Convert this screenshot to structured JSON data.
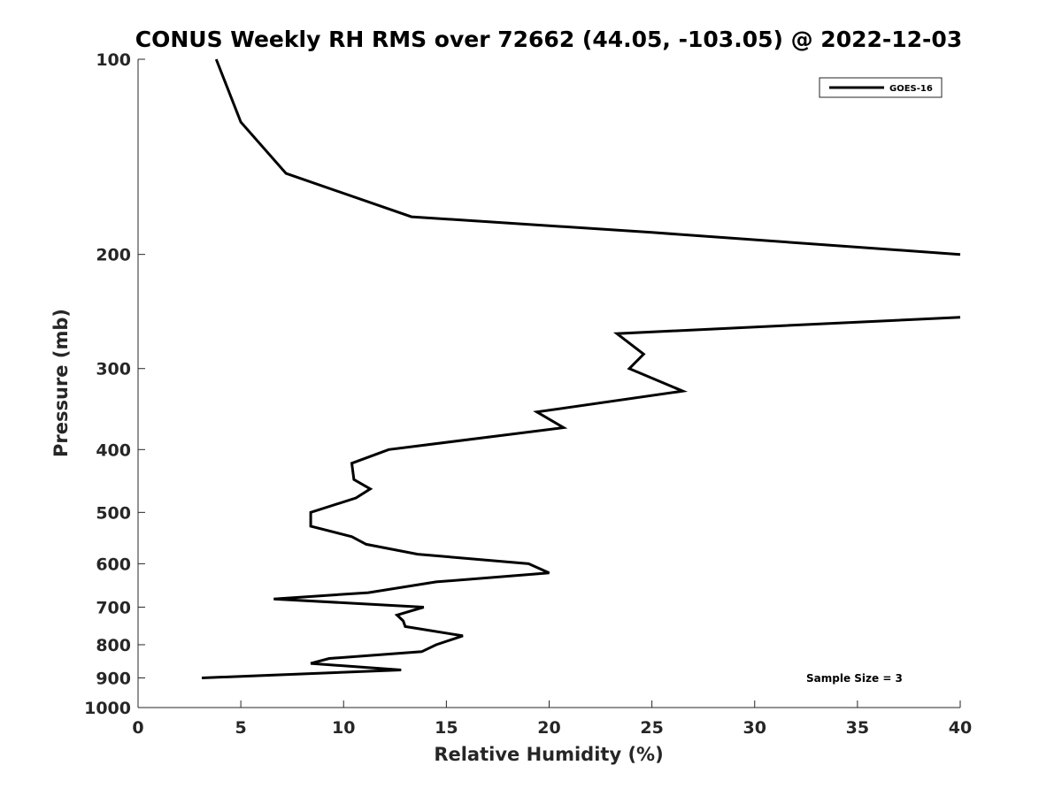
{
  "chart_data": {
    "type": "line",
    "title": "CONUS Weekly RH RMS over 72662 (44.05, -103.05) @ 2022-12-03",
    "xlabel": "Relative Humidity (%)",
    "ylabel": "Pressure (mb)",
    "xlim": [
      0,
      40
    ],
    "ylim": [
      100,
      1000
    ],
    "y_scale": "log",
    "y_reversed": true,
    "grid": false,
    "xticks": [
      0,
      5,
      10,
      15,
      20,
      25,
      30,
      35,
      40
    ],
    "yticks": [
      100,
      200,
      300,
      400,
      500,
      600,
      700,
      800,
      900,
      1000
    ],
    "legend_position": "top-right",
    "series": [
      {
        "name": "GOES-16",
        "color": "#000000",
        "points": [
          [
            3.8,
            100
          ],
          [
            5.0,
            125
          ],
          [
            7.2,
            150
          ],
          [
            13.3,
            175
          ],
          [
            25.0,
            185
          ],
          [
            40.0,
            200
          ],
          [
            null,
            225
          ],
          [
            40.0,
            250
          ],
          [
            23.3,
            265
          ],
          [
            24.6,
            285
          ],
          [
            23.9,
            300
          ],
          [
            26.5,
            325
          ],
          [
            19.4,
            350
          ],
          [
            20.7,
            370
          ],
          [
            17.8,
            380
          ],
          [
            12.2,
            400
          ],
          [
            10.4,
            420
          ],
          [
            10.5,
            445
          ],
          [
            11.3,
            460
          ],
          [
            10.6,
            475
          ],
          [
            8.4,
            500
          ],
          [
            8.4,
            525
          ],
          [
            10.4,
            545
          ],
          [
            11.1,
            560
          ],
          [
            13.6,
            580
          ],
          [
            19.0,
            600
          ],
          [
            20.0,
            620
          ],
          [
            14.5,
            640
          ],
          [
            11.2,
            665
          ],
          [
            6.6,
            680
          ],
          [
            13.9,
            700
          ],
          [
            12.6,
            720
          ],
          [
            12.9,
            735
          ],
          [
            13.0,
            750
          ],
          [
            15.8,
            775
          ],
          [
            14.5,
            800
          ],
          [
            13.8,
            820
          ],
          [
            9.3,
            840
          ],
          [
            8.4,
            855
          ],
          [
            12.8,
            875
          ],
          [
            3.1,
            900
          ]
        ]
      }
    ],
    "annotations": [
      "Sample Size = 3"
    ]
  }
}
